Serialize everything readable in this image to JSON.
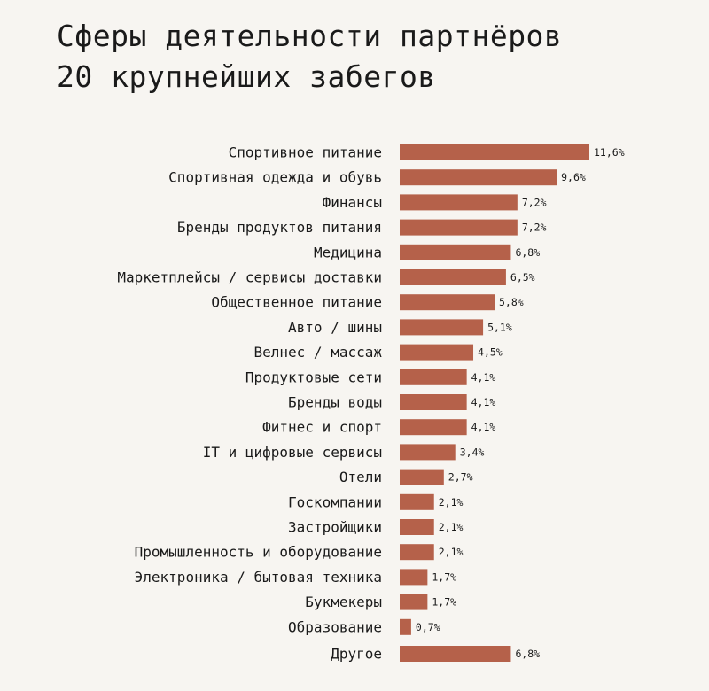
{
  "title": {
    "line1": "Сферы деятельности партнёров",
    "line2": "20 крупнейших забегов"
  },
  "colors": {
    "bar": "#b5614a",
    "background": "#f7f5f1",
    "text": "#1a1a1a"
  },
  "chart_data": {
    "type": "bar",
    "orientation": "horizontal",
    "title": "Сферы деятельности партнёров 20 крупнейших забегов",
    "xlabel": "",
    "ylabel": "",
    "grid": false,
    "legend": "none",
    "xlim": [
      0,
      11.6
    ],
    "categories": [
      "Спортивное питание",
      "Спортивная одежда и обувь",
      "Финансы",
      "Бренды продуктов питания",
      "Медицина",
      "Маркетплейсы / сервисы доставки",
      "Общественное питание",
      "Авто / шины",
      "Велнес / массаж",
      "Продуктовые сети",
      "Бренды воды",
      "Фитнес и спорт",
      "IT и цифровые сервисы",
      "Отели",
      "Госкомпании",
      "Застройщики",
      "Промышленность и оборудование",
      "Электроника / бытовая техника",
      "Букмекеры",
      "Образование",
      "Другое"
    ],
    "values": [
      11.6,
      9.6,
      7.2,
      7.2,
      6.8,
      6.5,
      5.8,
      5.1,
      4.5,
      4.1,
      4.1,
      4.1,
      3.4,
      2.7,
      2.1,
      2.1,
      2.1,
      1.7,
      1.7,
      0.7,
      6.8
    ],
    "value_labels": [
      "11,6%",
      "9,6%",
      "7,2%",
      "7,2%",
      "6,8%",
      "6,5%",
      "5,8%",
      "5,1%",
      "4,5%",
      "4,1%",
      "4,1%",
      "4,1%",
      "3,4%",
      "2,7%",
      "2,1%",
      "2,1%",
      "2,1%",
      "1,7%",
      "1,7%",
      "0,7%",
      "6,8%"
    ]
  }
}
